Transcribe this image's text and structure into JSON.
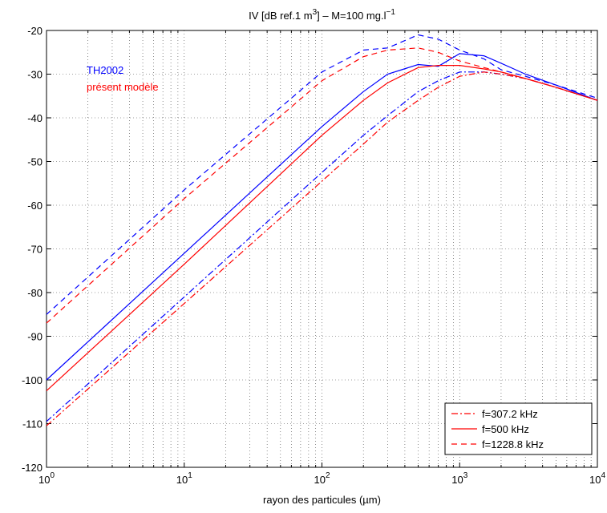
{
  "chart_data": {
    "type": "line",
    "title": [
      "IV [dB ref.1 m",
      "3",
      "] – M=100 mg.l",
      "−1"
    ],
    "xlabel": "rayon des particules (µm)",
    "xscale": "log",
    "xlim": [
      1,
      10000
    ],
    "xticks": [
      {
        "value": 1,
        "label": "10^0"
      },
      {
        "value": 10,
        "label": "10^1"
      },
      {
        "value": 100,
        "label": "10^2"
      },
      {
        "value": 1000,
        "label": "10^3"
      },
      {
        "value": 10000,
        "label": "10^4"
      }
    ],
    "ylim": [
      -120,
      -20
    ],
    "yticks": [
      -120,
      -110,
      -100,
      -90,
      -80,
      -70,
      -60,
      -50,
      -40,
      -30,
      -20
    ],
    "grid": true,
    "minor_grid": true,
    "legend_position": "lower right",
    "legend": [
      {
        "label": "f=307.2 kHz",
        "dash": "dashdot"
      },
      {
        "label": "f=500 kHz",
        "dash": "solid"
      },
      {
        "label": "f=1228.8 kHz",
        "dash": "dashed"
      }
    ],
    "legend_color": "#ff0000",
    "models": [
      {
        "label": "TH2002",
        "color": "#0000ff"
      },
      {
        "label": "présent modèle",
        "color": "#ff0000"
      }
    ],
    "x": [
      1,
      10,
      100,
      200,
      300,
      500,
      700,
      1000,
      1500,
      2000,
      3000,
      5000,
      10000
    ],
    "series": [
      {
        "model": 0,
        "freq": 0,
        "values": [
          -109.5,
          -81,
          -52.5,
          -44,
          -39.5,
          -34,
          -31.5,
          -29.5,
          -29.5,
          -30,
          -31,
          -33,
          -36
        ]
      },
      {
        "model": 1,
        "freq": 0,
        "values": [
          -110.5,
          -82.5,
          -54.5,
          -46,
          -41,
          -36,
          -33,
          -30.5,
          -29.5,
          -30,
          -31,
          -33,
          -36
        ]
      },
      {
        "model": 0,
        "freq": 1,
        "values": [
          -100,
          -71,
          -42,
          -34,
          -30,
          -27.8,
          -28.2,
          -25.3,
          -25.8,
          -27.5,
          -30,
          -32.5,
          -36
        ]
      },
      {
        "model": 1,
        "freq": 1,
        "values": [
          -102.5,
          -73.5,
          -44,
          -36,
          -32,
          -28.5,
          -28,
          -28,
          -28.8,
          -29.5,
          -31,
          -33,
          -36
        ]
      },
      {
        "model": 0,
        "freq": 2,
        "values": [
          -85,
          -56.5,
          -29.5,
          -24.5,
          -24,
          -21,
          -22,
          -24.5,
          -26.5,
          -29,
          -30.5,
          -32.5,
          -35.5
        ]
      },
      {
        "model": 1,
        "freq": 2,
        "values": [
          -87,
          -58.5,
          -31.5,
          -26,
          -24.5,
          -24,
          -25,
          -27,
          -28.5,
          -29.5,
          -31,
          -33,
          -36
        ]
      }
    ]
  }
}
